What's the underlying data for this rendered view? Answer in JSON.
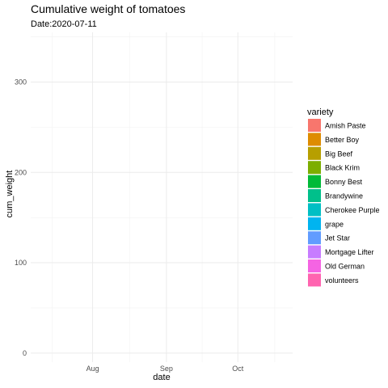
{
  "chart_data": {
    "type": "area",
    "title": "Cumulative weight of tomatoes",
    "subtitle": "Date:2020-07-11",
    "xlabel": "date",
    "ylabel": "cum_weight",
    "x_ticks": [
      "Aug",
      "Sep",
      "Oct"
    ],
    "y_ticks": [
      0,
      100,
      200,
      300
    ],
    "ylim": [
      -10,
      355
    ],
    "xlim": [
      "2020-07-06",
      "2020-10-24"
    ],
    "grid": true,
    "legend": {
      "title": "variety",
      "position": "right",
      "entries": [
        {
          "name": "Amish Paste",
          "color": "#F8766D"
        },
        {
          "name": "Better Boy",
          "color": "#DE8C00"
        },
        {
          "name": "Big Beef",
          "color": "#B79F00"
        },
        {
          "name": "Black Krim",
          "color": "#7CAE00"
        },
        {
          "name": "Bonny Best",
          "color": "#00BA38"
        },
        {
          "name": "Brandywine",
          "color": "#00C08B"
        },
        {
          "name": "Cherokee Purple",
          "color": "#00BFC4"
        },
        {
          "name": "grape",
          "color": "#00B4F0"
        },
        {
          "name": "Jet Star",
          "color": "#619CFF"
        },
        {
          "name": "Mortgage Lifter",
          "color": "#C77CFF"
        },
        {
          "name": "Old German",
          "color": "#F564E3"
        },
        {
          "name": "volunteers",
          "color": "#FF64B0"
        }
      ]
    },
    "series": []
  }
}
